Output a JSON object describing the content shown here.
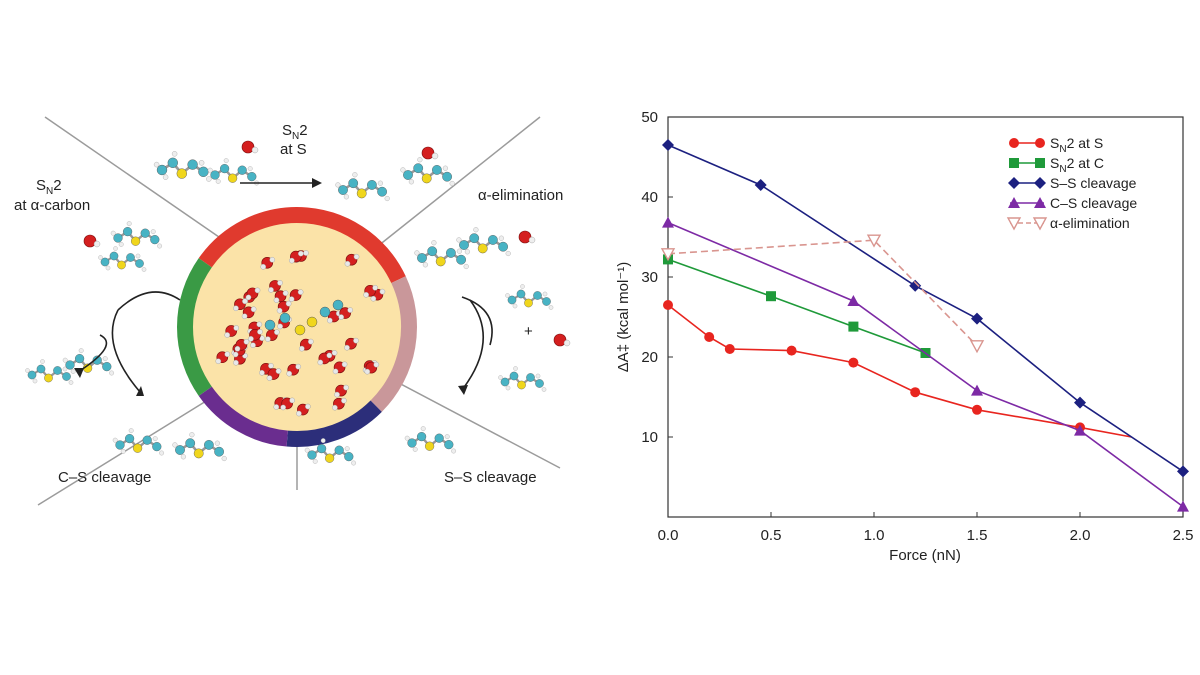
{
  "scheme": {
    "labels": {
      "sn2_at_s_line1": "S",
      "sn2_at_s_sub": "N",
      "sn2_at_s_line1_end": "2",
      "sn2_at_s_line2": "at S",
      "sn2_alpha_line1": "S",
      "sn2_alpha_sub": "N",
      "sn2_alpha_line1_end": "2",
      "sn2_alpha_line2": "at α-carbon",
      "alpha_elim": "α-elimination",
      "cs_cleavage": "C–S cleavage",
      "ss_cleavage": "S–S cleavage",
      "plus": "+"
    },
    "ring_colors": {
      "sn2_at_s": "#e03a2e",
      "alpha_elim": "#c9979a",
      "ss_cleavage": "#2c2e7a",
      "cs_cleavage": "#6a2d8f",
      "sn2_alpha": "#3a9a45",
      "core": "#fbe3a8"
    }
  },
  "chart_data": {
    "type": "line",
    "xlabel": "Force (nN)",
    "ylabel": "ΔA‡ (kcal mol⁻¹)",
    "xlim": [
      0,
      2.5
    ],
    "ylim": [
      0,
      50
    ],
    "xticks": [
      "0.0",
      "0.5",
      "1.0",
      "1.5",
      "2.0",
      "2.5"
    ],
    "yticks": [
      "10",
      "20",
      "30",
      "40",
      "50"
    ],
    "legend_position": "top-right",
    "series": [
      {
        "name": "SN2 at S",
        "name_main": "S",
        "name_sub": "N",
        "name_end": "2 at S",
        "color": "#e8251f",
        "marker": "circle",
        "dashed": false,
        "points": [
          [
            0.0,
            26.5
          ],
          [
            0.2,
            22.5
          ],
          [
            0.3,
            21.0
          ],
          [
            0.6,
            20.8
          ],
          [
            0.9,
            19.3
          ],
          [
            1.2,
            15.6
          ],
          [
            1.5,
            13.4
          ],
          [
            2.0,
            11.2
          ],
          [
            2.25,
            10.0
          ]
        ],
        "marker_count": 8
      },
      {
        "name": "SN2 at C",
        "name_main": "S",
        "name_sub": "N",
        "name_end": "2 at C",
        "color": "#1f9a3a",
        "marker": "square",
        "dashed": false,
        "points": [
          [
            0.0,
            32.2
          ],
          [
            0.5,
            27.6
          ],
          [
            0.9,
            23.8
          ],
          [
            1.25,
            20.5
          ]
        ],
        "marker_count": 4
      },
      {
        "name": "S–S cleavage",
        "name_main": "S–S cleavage",
        "name_sub": "",
        "name_end": "",
        "color": "#1c2080",
        "marker": "diamond",
        "dashed": false,
        "points": [
          [
            0.0,
            46.5
          ],
          [
            0.45,
            41.5
          ],
          [
            1.2,
            28.9
          ],
          [
            1.5,
            24.8
          ],
          [
            2.0,
            14.3
          ],
          [
            2.5,
            5.7
          ]
        ],
        "marker_count": 6
      },
      {
        "name": "C–S cleavage",
        "name_main": "C–S cleavage",
        "name_sub": "",
        "name_end": "",
        "color": "#7d2aa5",
        "marker": "triangle",
        "dashed": false,
        "points": [
          [
            0.0,
            36.8
          ],
          [
            0.9,
            27.0
          ],
          [
            1.5,
            15.8
          ],
          [
            2.0,
            10.8
          ],
          [
            2.5,
            1.3
          ]
        ],
        "marker_count": 5
      },
      {
        "name": "α-elimination",
        "name_main": "α-elimination",
        "name_sub": "",
        "name_end": "",
        "color": "#d9958f",
        "marker": "triangle-down-open",
        "dashed": true,
        "points": [
          [
            0.0,
            32.9
          ],
          [
            1.0,
            34.6
          ],
          [
            1.5,
            21.4
          ]
        ],
        "marker_count": 3
      }
    ]
  }
}
